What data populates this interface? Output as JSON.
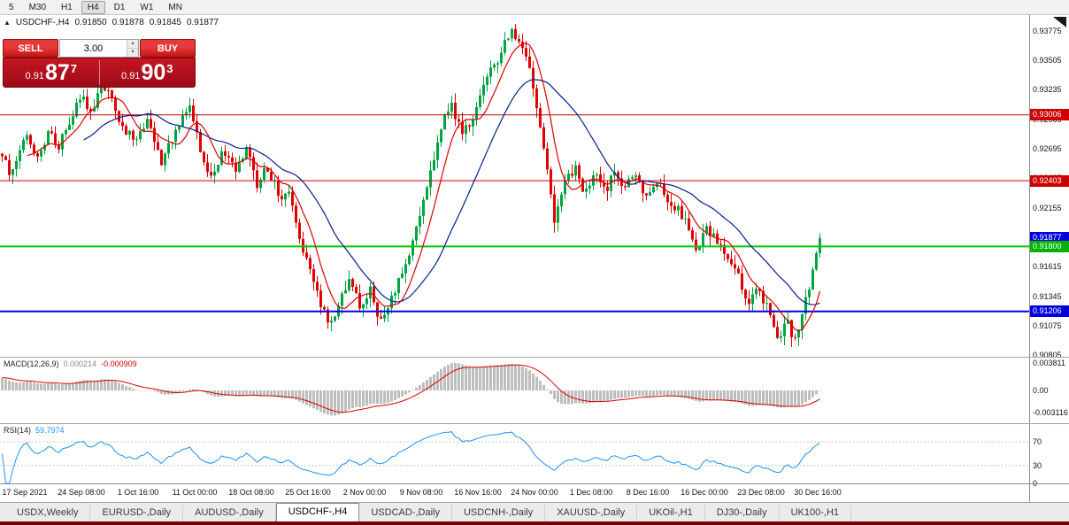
{
  "toolbar": {
    "timeframes": [
      "5",
      "M30",
      "H1",
      "H4",
      "D1",
      "W1",
      "MN"
    ],
    "active": "H4"
  },
  "icons": {
    "one_click_toggle": "▲",
    "spinner_up": "▴",
    "spinner_down": "▾"
  },
  "header": {
    "symbol": "USDCHF-,H4",
    "open": "0.91850",
    "high": "0.91878",
    "low": "0.91845",
    "close": "0.91877"
  },
  "one_click": {
    "sell_label": "SELL",
    "buy_label": "BUY",
    "volume": "3.00",
    "sell_price_prefix": "0.91",
    "sell_price_big": "87",
    "sell_price_sup": "7",
    "buy_price_prefix": "0.91",
    "buy_price_big": "90",
    "buy_price_sup": "3"
  },
  "price_axis": {
    "labels": [
      "0.93775",
      "0.93505",
      "0.93235",
      "0.92965",
      "0.92695",
      "0.92425",
      "0.92155",
      "0.91885",
      "0.91615",
      "0.91345",
      "0.91075",
      "0.90805"
    ],
    "badges": [
      {
        "label": "0.93006",
        "price": 0.93006,
        "color": "#cc0000"
      },
      {
        "label": "0.92403",
        "price": 0.92403,
        "color": "#cc0000"
      },
      {
        "label": "0.91877",
        "price": 0.91877,
        "color": "#0000dd"
      },
      {
        "label": "0.91800",
        "price": 0.918,
        "color": "#00b300"
      },
      {
        "label": "0.91206",
        "price": 0.91206,
        "color": "#0000dd"
      }
    ]
  },
  "hlines": [
    {
      "price": 0.93006,
      "color": "#cc0000",
      "width": 1
    },
    {
      "price": 0.92403,
      "color": "#cc0000",
      "width": 1
    },
    {
      "price": 0.918,
      "color": "#00cc00",
      "width": 2
    },
    {
      "price": 0.91206,
      "color": "#0000ee",
      "width": 2
    }
  ],
  "macd": {
    "name": "MACD(12,26,9)",
    "value_main": "0.000214",
    "value_signal": "-0.000909",
    "axis_labels": [
      "0.003811",
      "0.00",
      "-0.003116"
    ]
  },
  "rsi": {
    "name": "RSI(14)",
    "value": "59.7974",
    "axis_labels": [
      "70",
      "30",
      "0"
    ],
    "levels": [
      70,
      30
    ]
  },
  "time_axis": {
    "labels": [
      "17 Sep 2021",
      "24 Sep 08:00",
      "1 Oct 16:00",
      "11 Oct 00:00",
      "18 Oct 08:00",
      "25 Oct 16:00",
      "2 Nov 00:00",
      "9 Nov 08:00",
      "16 Nov 16:00",
      "24 Nov 00:00",
      "1 Dec 08:00",
      "8 Dec 16:00",
      "16 Dec 00:00",
      "23 Dec 08:00",
      "30 Dec 16:00"
    ]
  },
  "tabs": {
    "items": [
      "USDX,Weekly",
      "EURUSD-,Daily",
      "AUDUSD-,Daily",
      "USDCHF-,H4",
      "USDCAD-,Daily",
      "USDCNH-,Daily",
      "XAUUSD-,Daily",
      "UKOil-,H1",
      "DJ30-,Daily",
      "UK100-,H1"
    ],
    "active": "USDCHF-,H4"
  },
  "colors": {
    "up": "#00a443",
    "down": "#e00000",
    "ma_fast": "#dd0000",
    "ma_slow": "#001f8f",
    "macd_hist": "#bdbdbd",
    "macd_signal": "#dd0000",
    "rsi_line": "#1e90ff",
    "bottom_strip": "#7a0000"
  },
  "chart_data": {
    "type": "candlestick",
    "symbol": "USDCHF-",
    "timeframe": "H4",
    "bid": 0.91877,
    "ask": 0.91903,
    "price_max": 0.9392,
    "price_min": 0.9079,
    "candle_count": 232,
    "seed": 12,
    "noise": 0.0011,
    "wick": 0.0009,
    "last_close": 0.91877,
    "ma_fast_period": 8,
    "ma_slow_period": 24,
    "key_levels": [
      0.93006,
      0.92403,
      0.918,
      0.91206
    ],
    "anchors": [
      [
        0.0,
        0.9265
      ],
      [
        0.01,
        0.924
      ],
      [
        0.018,
        0.9262
      ],
      [
        0.032,
        0.928
      ],
      [
        0.045,
        0.9262
      ],
      [
        0.058,
        0.9286
      ],
      [
        0.07,
        0.9272
      ],
      [
        0.082,
        0.9296
      ],
      [
        0.095,
        0.932
      ],
      [
        0.108,
        0.9298
      ],
      [
        0.12,
        0.9332
      ],
      [
        0.132,
        0.9315
      ],
      [
        0.148,
        0.9288
      ],
      [
        0.162,
        0.9278
      ],
      [
        0.178,
        0.9298
      ],
      [
        0.195,
        0.9258
      ],
      [
        0.212,
        0.9288
      ],
      [
        0.228,
        0.9312
      ],
      [
        0.242,
        0.9268
      ],
      [
        0.255,
        0.9242
      ],
      [
        0.27,
        0.9268
      ],
      [
        0.285,
        0.9248
      ],
      [
        0.298,
        0.9268
      ],
      [
        0.312,
        0.9238
      ],
      [
        0.325,
        0.9252
      ],
      [
        0.338,
        0.9228
      ],
      [
        0.35,
        0.923
      ],
      [
        0.362,
        0.9192
      ],
      [
        0.375,
        0.9158
      ],
      [
        0.388,
        0.9128
      ],
      [
        0.4,
        0.9106
      ],
      [
        0.412,
        0.9132
      ],
      [
        0.425,
        0.9148
      ],
      [
        0.438,
        0.9124
      ],
      [
        0.45,
        0.9142
      ],
      [
        0.462,
        0.9112
      ],
      [
        0.475,
        0.9128
      ],
      [
        0.488,
        0.9152
      ],
      [
        0.5,
        0.9178
      ],
      [
        0.512,
        0.9212
      ],
      [
        0.525,
        0.9252
      ],
      [
        0.538,
        0.9295
      ],
      [
        0.55,
        0.9312
      ],
      [
        0.562,
        0.9282
      ],
      [
        0.575,
        0.93
      ],
      [
        0.588,
        0.9328
      ],
      [
        0.602,
        0.9348
      ],
      [
        0.615,
        0.9365
      ],
      [
        0.625,
        0.9376
      ],
      [
        0.638,
        0.9358
      ],
      [
        0.65,
        0.9325
      ],
      [
        0.662,
        0.9272
      ],
      [
        0.675,
        0.9206
      ],
      [
        0.688,
        0.9238
      ],
      [
        0.7,
        0.9254
      ],
      [
        0.712,
        0.923
      ],
      [
        0.725,
        0.9247
      ],
      [
        0.738,
        0.9226
      ],
      [
        0.75,
        0.9253
      ],
      [
        0.762,
        0.9233
      ],
      [
        0.775,
        0.9246
      ],
      [
        0.788,
        0.9226
      ],
      [
        0.8,
        0.9243
      ],
      [
        0.812,
        0.9226
      ],
      [
        0.825,
        0.9216
      ],
      [
        0.838,
        0.9198
      ],
      [
        0.85,
        0.9178
      ],
      [
        0.862,
        0.9196
      ],
      [
        0.875,
        0.9184
      ],
      [
        0.888,
        0.9163
      ],
      [
        0.9,
        0.9152
      ],
      [
        0.912,
        0.913
      ],
      [
        0.925,
        0.9142
      ],
      [
        0.938,
        0.9118
      ],
      [
        0.95,
        0.9098
      ],
      [
        0.96,
        0.9114
      ],
      [
        0.97,
        0.9091
      ],
      [
        0.98,
        0.9126
      ],
      [
        0.99,
        0.915
      ],
      [
        1.0,
        0.91877
      ]
    ]
  }
}
